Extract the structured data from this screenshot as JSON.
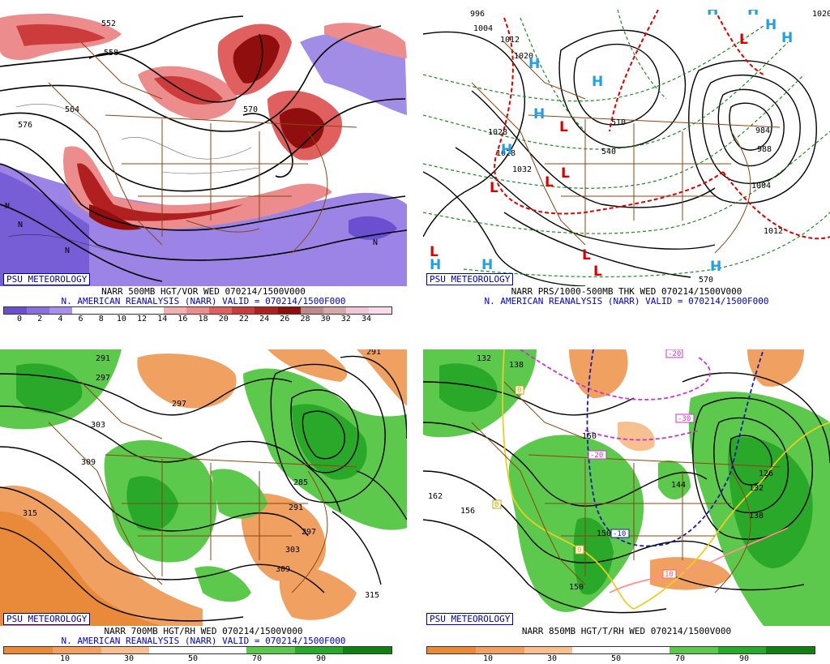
{
  "panels": {
    "top_left": {
      "credit": "PSU METEOROLOGY",
      "line1": "NARR 500MB HGT/VOR WED 070214/1500V000",
      "line2": "N. AMERICAN REANALYSIS (NARR) VALID = 070214/1500F000",
      "colorbar_colors": [
        "#6a4fd0",
        "#8a6fe0",
        "#a890ee",
        "#ffffff",
        "#ffffff",
        "#ffffff",
        "#ffffff",
        "#f4b0b0",
        "#ec8c8c",
        "#e06060",
        "#cc3c3c",
        "#b02020",
        "#900e0e",
        "#c08a8a",
        "#d8a8a8",
        "#f2c8d8",
        "#f8dcec"
      ],
      "ticks": [
        "0",
        "2",
        "4",
        "6",
        "8",
        "10",
        "12",
        "14",
        "16",
        "18",
        "20",
        "22",
        "24",
        "26",
        "28",
        "30",
        "32",
        "34"
      ],
      "contour_labels": [
        "552",
        "558",
        "564",
        "570",
        "576",
        "N",
        "N",
        "N",
        "N"
      ]
    },
    "top_right": {
      "credit": "PSU METEOROLOGY",
      "line1": "NARR PRS/1000-500MB THK WED 070214/1500V000",
      "line2": "N. AMERICAN REANALYSIS (NARR) VALID = 070214/1500F000",
      "contour_labels": [
        "996",
        "1004",
        "1012",
        "1020",
        "1028",
        "1028",
        "1032",
        "1004",
        "1012",
        "984",
        "988",
        "510",
        "540",
        "570",
        "1020"
      ],
      "highs": [
        "H",
        "H",
        "H",
        "H",
        "H",
        "H",
        "H",
        "H",
        "H",
        "H",
        "H"
      ],
      "lows": [
        "L",
        "L",
        "L",
        "L",
        "L",
        "L",
        "L",
        "L"
      ]
    },
    "bottom_left": {
      "credit": "PSU METEOROLOGY",
      "line1": "NARR 700MB HGT/RH WED 070214/1500V000",
      "line2": "N. AMERICAN REANALYSIS (NARR) VALID = 070214/1500F000",
      "colorbar_colors": [
        "#e88a3a",
        "#f0a060",
        "#f6c090",
        "#ffffff",
        "#ffffff",
        "#5cc84c",
        "#2aa82a",
        "#108010"
      ],
      "ticks": [
        "10",
        "30",
        "50",
        "70",
        "90"
      ],
      "contour_labels": [
        "291",
        "297",
        "303",
        "309",
        "315",
        "291",
        "285",
        "297",
        "303",
        "309",
        "315",
        "297",
        "291"
      ]
    },
    "bottom_right": {
      "credit": "PSU METEOROLOGY",
      "line1": "NARR 850MB HGT/T/RH WED 070214/1500V000",
      "line2": "",
      "colorbar_colors": [
        "#e88a3a",
        "#f0a060",
        "#f6c090",
        "#ffffff",
        "#ffffff",
        "#5cc84c",
        "#2aa82a",
        "#108010"
      ],
      "ticks": [
        "10",
        "30",
        "50",
        "70",
        "90"
      ],
      "contour_labels": [
        "132",
        "138",
        "150",
        "144",
        "156",
        "162",
        "126",
        "132",
        "138",
        "150",
        "150"
      ],
      "temp_labels": [
        "-20",
        "-30",
        "-20",
        "-10",
        "0",
        "0",
        "0",
        "10"
      ]
    }
  }
}
